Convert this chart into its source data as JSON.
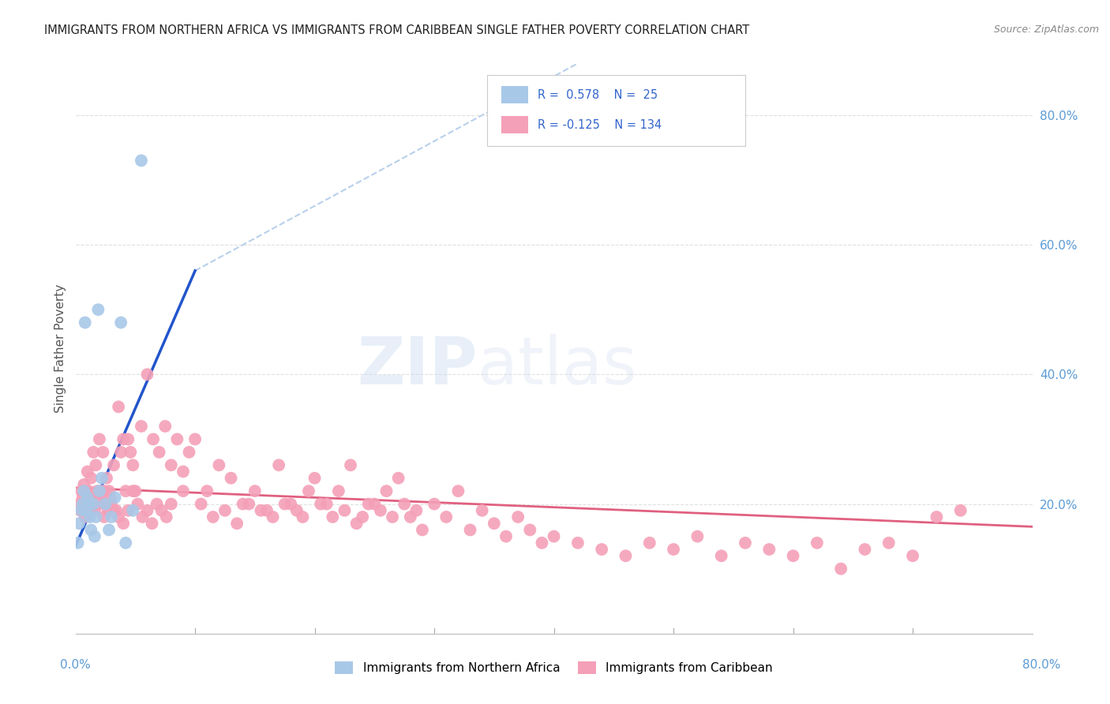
{
  "title": "IMMIGRANTS FROM NORTHERN AFRICA VS IMMIGRANTS FROM CARIBBEAN SINGLE FATHER POVERTY CORRELATION CHART",
  "source": "Source: ZipAtlas.com",
  "ylabel": "Single Father Poverty",
  "color_blue": "#a8c8e8",
  "color_pink": "#f4a0b8",
  "color_blue_line": "#2255cc",
  "color_pink_line": "#e06080",
  "color_dashed": "#b8d0ec",
  "bg_color": "#ffffff",
  "grid_color": "#e0e0e0",
  "title_color": "#222222",
  "right_label_color": "#5b9bd5",
  "xlim": [
    0.0,
    0.8
  ],
  "ylim": [
    0.0,
    0.88
  ],
  "blue_x": [
    0.002,
    0.003,
    0.005,
    0.006,
    0.007,
    0.008,
    0.009,
    0.01,
    0.011,
    0.012,
    0.013,
    0.015,
    0.016,
    0.017,
    0.019,
    0.02,
    0.022,
    0.025,
    0.028,
    0.03,
    0.033,
    0.038,
    0.042,
    0.048,
    0.055
  ],
  "blue_y": [
    0.14,
    0.17,
    0.19,
    0.2,
    0.22,
    0.48,
    0.19,
    0.21,
    0.2,
    0.18,
    0.16,
    0.2,
    0.15,
    0.18,
    0.5,
    0.22,
    0.24,
    0.2,
    0.16,
    0.18,
    0.21,
    0.48,
    0.14,
    0.19,
    0.73
  ],
  "pink_x": [
    0.003,
    0.004,
    0.005,
    0.006,
    0.007,
    0.008,
    0.009,
    0.01,
    0.011,
    0.012,
    0.013,
    0.014,
    0.015,
    0.016,
    0.017,
    0.018,
    0.019,
    0.02,
    0.021,
    0.022,
    0.023,
    0.024,
    0.025,
    0.026,
    0.027,
    0.028,
    0.029,
    0.03,
    0.032,
    0.034,
    0.036,
    0.038,
    0.04,
    0.042,
    0.044,
    0.046,
    0.048,
    0.05,
    0.055,
    0.06,
    0.065,
    0.07,
    0.075,
    0.08,
    0.085,
    0.09,
    0.095,
    0.1,
    0.11,
    0.12,
    0.13,
    0.14,
    0.15,
    0.16,
    0.17,
    0.18,
    0.19,
    0.2,
    0.21,
    0.22,
    0.23,
    0.24,
    0.25,
    0.26,
    0.27,
    0.28,
    0.29,
    0.3,
    0.31,
    0.32,
    0.33,
    0.34,
    0.35,
    0.36,
    0.37,
    0.38,
    0.39,
    0.4,
    0.42,
    0.44,
    0.46,
    0.48,
    0.5,
    0.52,
    0.54,
    0.56,
    0.58,
    0.6,
    0.62,
    0.64,
    0.66,
    0.68,
    0.7,
    0.72,
    0.74,
    0.008,
    0.012,
    0.016,
    0.02,
    0.024,
    0.028,
    0.032,
    0.036,
    0.04,
    0.044,
    0.048,
    0.052,
    0.056,
    0.06,
    0.064,
    0.068,
    0.072,
    0.076,
    0.08,
    0.09,
    0.105,
    0.115,
    0.125,
    0.135,
    0.145,
    0.155,
    0.165,
    0.175,
    0.185,
    0.195,
    0.205,
    0.215,
    0.225,
    0.235,
    0.245,
    0.255,
    0.265,
    0.275,
    0.285
  ],
  "pink_y": [
    0.2,
    0.19,
    0.22,
    0.21,
    0.23,
    0.18,
    0.2,
    0.25,
    0.22,
    0.2,
    0.24,
    0.19,
    0.28,
    0.2,
    0.26,
    0.22,
    0.2,
    0.3,
    0.22,
    0.21,
    0.28,
    0.22,
    0.2,
    0.24,
    0.19,
    0.22,
    0.21,
    0.2,
    0.26,
    0.19,
    0.35,
    0.28,
    0.3,
    0.22,
    0.3,
    0.28,
    0.26,
    0.22,
    0.32,
    0.4,
    0.3,
    0.28,
    0.32,
    0.26,
    0.3,
    0.25,
    0.28,
    0.3,
    0.22,
    0.26,
    0.24,
    0.2,
    0.22,
    0.19,
    0.26,
    0.2,
    0.18,
    0.24,
    0.2,
    0.22,
    0.26,
    0.18,
    0.2,
    0.22,
    0.24,
    0.18,
    0.16,
    0.2,
    0.18,
    0.22,
    0.16,
    0.19,
    0.17,
    0.15,
    0.18,
    0.16,
    0.14,
    0.15,
    0.14,
    0.13,
    0.12,
    0.14,
    0.13,
    0.15,
    0.12,
    0.14,
    0.13,
    0.12,
    0.14,
    0.1,
    0.13,
    0.14,
    0.12,
    0.18,
    0.19,
    0.2,
    0.21,
    0.19,
    0.21,
    0.18,
    0.2,
    0.19,
    0.18,
    0.17,
    0.19,
    0.22,
    0.2,
    0.18,
    0.19,
    0.17,
    0.2,
    0.19,
    0.18,
    0.2,
    0.22,
    0.2,
    0.18,
    0.19,
    0.17,
    0.2,
    0.19,
    0.18,
    0.2,
    0.19,
    0.22,
    0.2,
    0.18,
    0.19,
    0.17,
    0.2,
    0.19,
    0.18,
    0.2,
    0.19
  ],
  "blue_line_x0": 0.0,
  "blue_line_x1": 0.1,
  "blue_line_y0": 0.135,
  "blue_line_y1": 0.56,
  "dash_line_x0": 0.1,
  "dash_line_x1": 0.42,
  "dash_line_y0": 0.56,
  "dash_line_y1": 0.88,
  "pink_line_x0": 0.0,
  "pink_line_x1": 0.8,
  "pink_line_y0": 0.225,
  "pink_line_y1": 0.165
}
